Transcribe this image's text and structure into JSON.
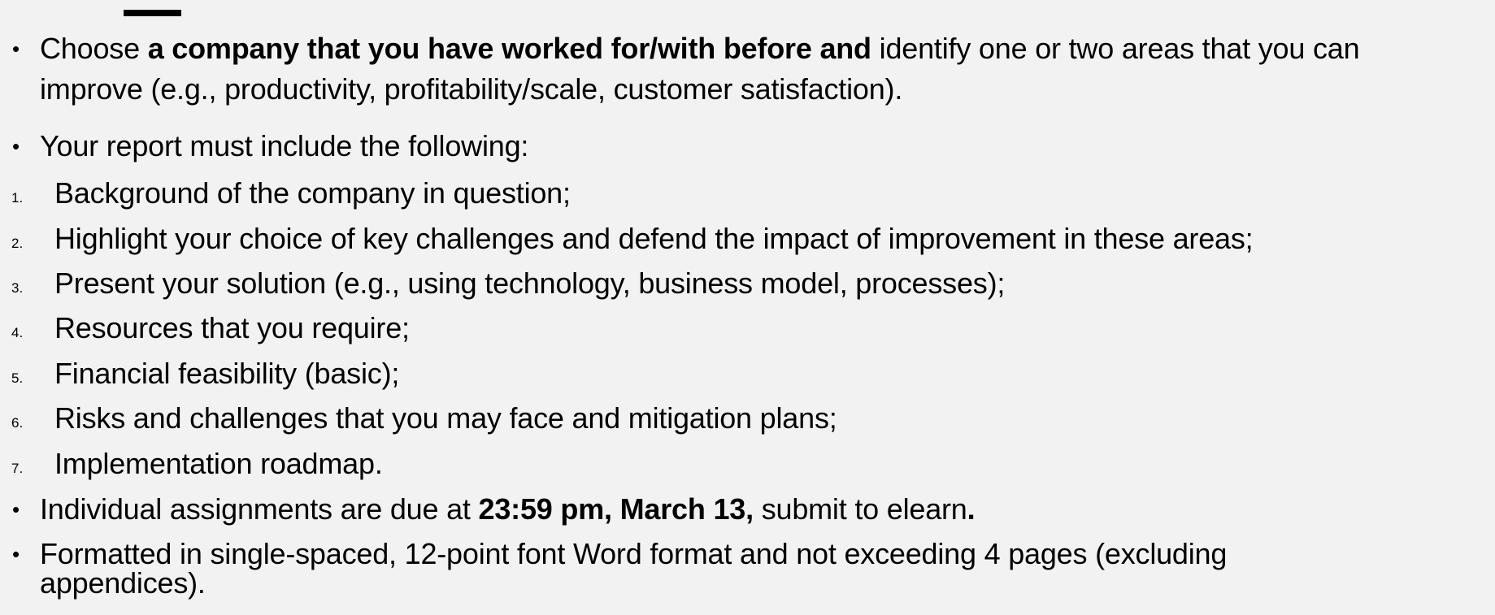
{
  "bullets": {
    "b1": {
      "prefix": "Choose ",
      "bold": "a company that you have worked for/with before and",
      "suffix": " identify one or two areas that you can",
      "line2": "improve (e.g., productivity, profitability/scale, customer satisfaction)."
    },
    "b2": {
      "text": "Your report must include the following:"
    },
    "b3": {
      "prefix": "Individual assignments are due at ",
      "bold": "23:59 pm, March 13,",
      "suffix": " submit to elearn",
      "end": "."
    },
    "b4": {
      "line1": "Formatted in single-spaced, 12-point font Word format and not exceeding 4 pages (excluding",
      "line2": "appendices)."
    }
  },
  "numbered": [
    {
      "num": "1.",
      "text": "Background of the company in question;"
    },
    {
      "num": "2.",
      "text": "Highlight your choice of key challenges and defend the impact of improvement in these areas;"
    },
    {
      "num": "3.",
      "text": "Present your solution (e.g., using technology, business model, processes);"
    },
    {
      "num": "4.",
      "text": "Resources that you require;"
    },
    {
      "num": "5.",
      "text": "Financial feasibility (basic);"
    },
    {
      "num": "6.",
      "text": "Risks and challenges that you may face and mitigation plans;"
    },
    {
      "num": "7.",
      "text": "Implementation roadmap."
    }
  ]
}
